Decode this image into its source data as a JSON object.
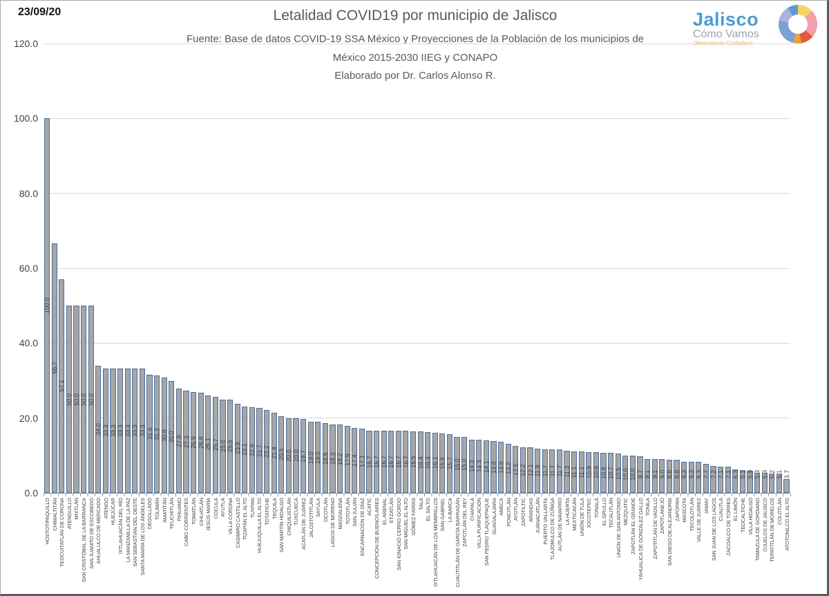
{
  "header": {
    "date": "23/09/20",
    "title": "Letalidad COVID19 por municipio de Jalisco",
    "source": "Fuente: Base de datos COVID-19 SSA México y Proyecciones de la Población de los municipios de México 2015-2030 IIEG y CONAPO",
    "author": "Elaborado por Dr. Carlos Alonso R."
  },
  "logo": {
    "name": "Jalisco",
    "tagline": "Cómo Vamos",
    "subtagline": "Observatorio Ciudadano"
  },
  "chart_data": {
    "type": "bar",
    "title": "Letalidad COVID19 por municipio de Jalisco",
    "xlabel": "",
    "ylabel": "",
    "ylim": [
      0,
      120
    ],
    "yticks": [
      0,
      20,
      40,
      60,
      80,
      100,
      120
    ],
    "ytick_labels": [
      "0.0",
      "20.0",
      "40.0",
      "60.0",
      "80.0",
      "100.0",
      "120.0"
    ],
    "grid": true,
    "legend_position": "none",
    "bar_fill": "#a6a6a6",
    "bar_border": "#4a6d9e",
    "value_labels_rotated": true,
    "categories": [
      "HOSTOTIPAQUILLO",
      "CHIMALTITÁN",
      "TEOCUITATLÁN DE CORONA",
      "ATENGUILLO",
      "MIXTLÁN",
      "SAN CRISTÓBAL DE LA BARRANCA",
      "SAN JUANITO DE ESCOBEDO",
      "AHUALULCO DE MERCADO",
      "ATENGO",
      "HUEJÚCAR",
      "IXTLAHUACÁN DEL RÍO",
      "LA MANZANILLA DE LA PAZ",
      "SAN SEBASTIÁN DEL OESTE",
      "SANTA MARÍA DE LOS ÁNGELES",
      "DEGOLLADO",
      "TOLIMÁN",
      "AMATITÁN",
      "TEUCHITLÁN",
      "PIHUAMO",
      "CABO CORRIENTES",
      "TOMATLÁN",
      "CIHUATLÁN",
      "JESÚS MARÍA",
      "COCULA",
      "AYUTLA",
      "VILLA CORONA",
      "CASIMIRO CASTILLO",
      "TIZAPÁN EL ALTO",
      "TUXPAN",
      "HUEJUQUILLA EL ALTO",
      "TOTATICHE",
      "TEQUILA",
      "SAN MARTÍN HIDALGO",
      "CHIQUILISTLÁN",
      "TUXCUECA",
      "ACATLÁN DE JUÁREZ",
      "JALOSTOTITLÁN",
      "SAYULA",
      "OCOTLÁN",
      "LAGOS DE MORENO",
      "MAGDALENA",
      "TOTOTLÁN",
      "SAN JULIÁN",
      "ENCARNACIÓN DE DÍAZ",
      "ACATIC",
      "CONCEPCIÓN DE BUENOS AIRES",
      "EL ARENAL",
      "ETZATLÁN",
      "SAN IGNACIO CERRO GORDO",
      "SAN MIGUEL EL ALTO",
      "GÓMEZ FARÍAS",
      "TALA",
      "EL SALTO",
      "IXTLAHUACÁN DE LOS MEMBRILLOS",
      "SAN GABRIEL",
      "LA BARCA",
      "CUAUTITLÁN DE GARCÍA BARRAGÁN",
      "ZAPOTLÁN DEL REY",
      "CHAPALA",
      "VILLA PURIFICACIÓN",
      "SAN PEDRO TLAQUEPAQUE",
      "GUADALAJARA",
      "AMECA",
      "PONCITLÁN",
      "AYOTLÁN",
      "ZAPOTILTIC",
      "ARANDAS",
      "JUANACATLÁN",
      "PUERTO VALLARTA",
      "TLAJOMULCO DE ZÚÑIGA",
      "AUTLÁN DE NAVARRO",
      "LA HUERTA",
      "MEXTICACÁN",
      "UNIÓN DE TULA",
      "JOCOTEPEC",
      "TONALÁ",
      "EL GRULLO",
      "TECALITLÁN",
      "UNIÓN DE SAN ANTONIO",
      "MEZQUITIC",
      "ZAPOTLÁN EL GRANDE",
      "YAHUALICA DE GONZÁLEZ GALLO",
      "TONILA",
      "ZAPOTITLÁN DE VADILLO",
      "ZAPOTLANEJO",
      "SAN DIEGO DE ALEJANDRÍA",
      "ZAPOPAN",
      "MASCOTA",
      "TECOLOTLÁN",
      "VALLE DE JUÁREZ",
      "JAMAY",
      "SAN JUAN DE LOS LAGOS",
      "CUAUTLA",
      "ZACOALCO DE TORRES",
      "EL LIMÓN",
      "TEOCALTICHE",
      "VILLA HIDALGO",
      "TAMAZULA DE GORDIANO",
      "OJUELOS DE JALISCO",
      "TEPATITLÁN DE MORELOS",
      "COLOTLÁN",
      "ATOTONILCO EL ALTO"
    ],
    "values": [
      100.0,
      66.7,
      57.1,
      50.0,
      50.0,
      50.0,
      50.0,
      34.0,
      33.3,
      33.3,
      33.3,
      33.3,
      33.3,
      33.3,
      31.6,
      31.3,
      30.8,
      30.0,
      27.8,
      27.3,
      26.9,
      26.8,
      26.1,
      25.7,
      25.0,
      25.0,
      23.9,
      23.1,
      22.9,
      22.7,
      22.2,
      21.4,
      20.5,
      20.0,
      20.0,
      19.7,
      19.0,
      19.0,
      18.6,
      18.3,
      18.2,
      17.9,
      17.4,
      17.1,
      16.7,
      16.7,
      16.7,
      16.7,
      16.7,
      16.7,
      16.5,
      16.4,
      16.3,
      16.1,
      15.8,
      15.7,
      15.0,
      15.0,
      14.3,
      14.3,
      14.1,
      13.8,
      13.6,
      13.2,
      12.5,
      12.2,
      12.1,
      11.9,
      11.7,
      11.7,
      11.7,
      11.3,
      11.1,
      11.1,
      10.9,
      10.9,
      10.8,
      10.7,
      10.5,
      10.0,
      10.0,
      9.7,
      9.1,
      9.1,
      9.0,
      8.8,
      8.8,
      8.3,
      8.3,
      8.3,
      7.7,
      7.2,
      7.1,
      7.1,
      6.3,
      6.1,
      5.9,
      5.3,
      5.3,
      5.2,
      5.1,
      3.7
    ]
  }
}
